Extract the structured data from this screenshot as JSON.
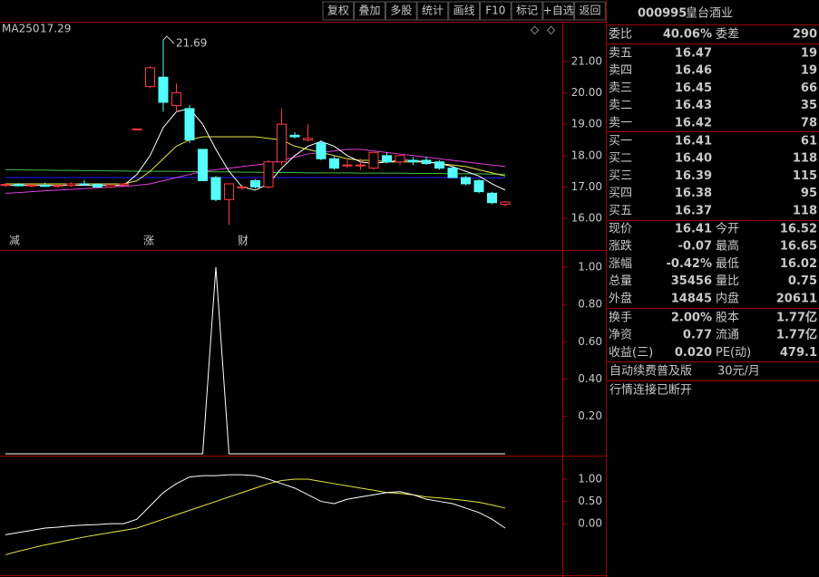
{
  "toolbar": [
    "复权",
    "叠加",
    "多股",
    "统计",
    "画线",
    "F10",
    "标记",
    "+自选",
    "返回"
  ],
  "main_chart": {
    "ma_label": "MA250",
    "ma_value": "17.29",
    "peak_label": "21.69",
    "markers": [
      "减",
      "涨",
      "财"
    ],
    "ylim": [
      15.51,
      22.24
    ],
    "yticks": [
      {
        "value": 21,
        "label": "21.00"
      },
      {
        "value": 20,
        "label": "20.00"
      },
      {
        "value": 19,
        "label": "19.00"
      },
      {
        "value": 18,
        "label": "18.00"
      },
      {
        "value": 17,
        "label": "17.00"
      },
      {
        "value": 16,
        "label": "16.00"
      }
    ],
    "up_color": "#ff3b3b",
    "down_color": "#54ffff",
    "candles": {
      "open": [
        17.05,
        17.08,
        17.04,
        17.06,
        17.02,
        17.05,
        17.1,
        17.08,
        17.0,
        17.06,
        18.85,
        20.2,
        20.5,
        19.6,
        19.5,
        18.2,
        17.3,
        16.6,
        17.0,
        17.2,
        17.0,
        17.8,
        18.65,
        18.5,
        18.4,
        17.9,
        17.7,
        17.7,
        17.6,
        18.0,
        17.8,
        17.85,
        17.85,
        17.8,
        17.6,
        17.3,
        17.2,
        16.8,
        16.45
      ],
      "high": [
        17.12,
        17.12,
        17.1,
        17.14,
        17.08,
        17.15,
        17.22,
        17.12,
        17.1,
        17.12,
        18.85,
        20.85,
        21.69,
        20.3,
        19.6,
        18.2,
        17.35,
        17.1,
        17.05,
        17.25,
        17.85,
        19.5,
        18.75,
        19.0,
        18.5,
        18.0,
        17.9,
        17.9,
        18.1,
        18.1,
        18.0,
        17.95,
        17.95,
        17.85,
        17.65,
        17.35,
        17.25,
        16.85,
        16.55
      ],
      "low": [
        17.0,
        17.02,
        16.98,
        17.0,
        16.96,
        17.0,
        17.05,
        16.98,
        16.96,
        17.0,
        18.85,
        20.15,
        19.4,
        19.4,
        18.4,
        17.2,
        16.55,
        15.8,
        16.9,
        16.95,
        16.95,
        17.7,
        18.55,
        18.45,
        17.85,
        17.55,
        17.6,
        17.55,
        17.55,
        17.75,
        17.7,
        17.7,
        17.7,
        17.55,
        17.3,
        17.05,
        16.8,
        16.45,
        16.38
      ],
      "close": [
        17.08,
        17.04,
        17.06,
        17.02,
        17.05,
        17.1,
        17.08,
        17.0,
        17.06,
        17.1,
        18.85,
        20.8,
        19.7,
        20.0,
        18.5,
        17.2,
        16.6,
        17.1,
        17.0,
        17.0,
        17.8,
        19.0,
        18.6,
        18.55,
        17.9,
        17.6,
        17.7,
        17.7,
        18.1,
        17.8,
        18.0,
        17.8,
        17.75,
        17.6,
        17.3,
        17.1,
        16.85,
        16.5,
        16.52
      ]
    },
    "ma_series": [
      {
        "color": "#2020ff",
        "values": [
          17.3,
          17.3,
          17.3,
          17.3,
          17.3,
          17.3,
          17.3,
          17.3,
          17.3,
          17.3,
          17.3,
          17.3,
          17.3,
          17.3,
          17.3,
          17.3,
          17.3,
          17.3,
          17.3,
          17.3,
          17.3,
          17.3,
          17.3,
          17.3,
          17.3,
          17.3,
          17.3,
          17.3,
          17.3,
          17.3,
          17.3,
          17.3,
          17.3,
          17.3,
          17.29,
          17.29,
          17.29,
          17.29,
          17.29
        ]
      },
      {
        "color": "#40c040",
        "values": [
          17.55,
          17.55,
          17.54,
          17.54,
          17.53,
          17.53,
          17.52,
          17.52,
          17.51,
          17.51,
          17.5,
          17.5,
          17.5,
          17.5,
          17.49,
          17.49,
          17.48,
          17.48,
          17.47,
          17.47,
          17.46,
          17.46,
          17.46,
          17.45,
          17.45,
          17.45,
          17.45,
          17.44,
          17.44,
          17.44,
          17.44,
          17.43,
          17.43,
          17.43,
          17.42,
          17.42,
          17.42,
          17.41,
          17.41
        ]
      },
      {
        "color": "#e040e0",
        "values": [
          16.8,
          16.82,
          16.85,
          16.88,
          16.9,
          16.92,
          16.95,
          16.97,
          17.0,
          17.02,
          17.05,
          17.1,
          17.2,
          17.3,
          17.4,
          17.5,
          17.55,
          17.6,
          17.65,
          17.7,
          17.75,
          17.85,
          17.95,
          18.05,
          18.1,
          18.15,
          18.2,
          18.2,
          18.15,
          18.1,
          18.05,
          18.0,
          17.95,
          17.9,
          17.85,
          17.8,
          17.75,
          17.7,
          17.65
        ]
      },
      {
        "color": "#e8e840",
        "values": [
          17.1,
          17.1,
          17.1,
          17.1,
          17.1,
          17.1,
          17.1,
          17.1,
          17.1,
          17.1,
          17.2,
          17.5,
          17.9,
          18.3,
          18.5,
          18.6,
          18.6,
          18.6,
          18.6,
          18.6,
          18.55,
          18.5,
          18.3,
          18.2,
          18.1,
          18.0,
          17.9,
          17.85,
          17.85,
          17.8,
          17.8,
          17.8,
          17.8,
          17.75,
          17.7,
          17.65,
          17.55,
          17.45,
          17.35
        ]
      },
      {
        "color": "#ffffff",
        "values": [
          17.05,
          17.05,
          17.05,
          17.05,
          17.05,
          17.05,
          17.05,
          17.05,
          17.05,
          17.05,
          17.4,
          18.0,
          18.9,
          19.4,
          19.5,
          19.0,
          18.2,
          17.5,
          17.0,
          16.9,
          17.1,
          17.6,
          18.0,
          18.3,
          18.45,
          18.3,
          18.0,
          17.8,
          17.75,
          17.8,
          17.85,
          17.85,
          17.8,
          17.75,
          17.65,
          17.5,
          17.35,
          17.1,
          16.9
        ]
      }
    ]
  },
  "indicator_1": {
    "ylim": [
      -0.01,
      1.058
    ],
    "yticks": [
      {
        "value": 1,
        "label": "1.00"
      },
      {
        "value": 0.8,
        "label": "0.80"
      },
      {
        "value": 0.6,
        "label": "0.60"
      },
      {
        "value": 0.4,
        "label": "0.40"
      },
      {
        "value": 0.2,
        "label": "0.20"
      }
    ],
    "series": [
      {
        "color": "#ffffff",
        "values": [
          0,
          0,
          0,
          0,
          0,
          0,
          0,
          0,
          0,
          0,
          0,
          0,
          0,
          0,
          0,
          0,
          1,
          0,
          0,
          0,
          0,
          0,
          0,
          0,
          0,
          0,
          0,
          0,
          0,
          0,
          0,
          0,
          0,
          0,
          0,
          0,
          0,
          0,
          0
        ]
      }
    ]
  },
  "indicator_2": {
    "ylim": [
      -1.16,
      1.49
    ],
    "yticks": [
      {
        "value": 1,
        "label": "1.00"
      },
      {
        "value": 0.5,
        "label": "0.50"
      },
      {
        "value": 0,
        "label": "0.00"
      }
    ],
    "series": [
      {
        "color": "#e8e840",
        "values": [
          -0.7,
          -0.62,
          -0.55,
          -0.48,
          -0.42,
          -0.36,
          -0.3,
          -0.25,
          -0.2,
          -0.15,
          -0.1,
          0.0,
          0.1,
          0.2,
          0.3,
          0.4,
          0.5,
          0.6,
          0.7,
          0.8,
          0.9,
          0.97,
          1.0,
          1.0,
          0.95,
          0.9,
          0.85,
          0.8,
          0.75,
          0.7,
          0.68,
          0.65,
          0.6,
          0.58,
          0.55,
          0.52,
          0.48,
          0.42,
          0.35
        ]
      },
      {
        "color": "#ffffff",
        "values": [
          -0.25,
          -0.2,
          -0.15,
          -0.1,
          -0.08,
          -0.05,
          -0.03,
          -0.02,
          0.0,
          0.0,
          0.1,
          0.4,
          0.7,
          0.9,
          1.05,
          1.08,
          1.08,
          1.1,
          1.1,
          1.08,
          1.0,
          0.9,
          0.8,
          0.65,
          0.5,
          0.45,
          0.55,
          0.6,
          0.65,
          0.7,
          0.72,
          0.65,
          0.55,
          0.5,
          0.45,
          0.35,
          0.25,
          0.1,
          -0.1
        ]
      }
    ]
  },
  "quote": {
    "code": "000995",
    "name": "皇台酒业",
    "ratio_row": {
      "label": "委比",
      "value": "40.06%",
      "color": "#ff4040",
      "label2": "委差",
      "value2": "290",
      "color2": "#ff4040"
    },
    "sell": [
      {
        "label": "卖五",
        "price": "16.47",
        "volume": "19"
      },
      {
        "label": "卖四",
        "price": "16.46",
        "volume": "19"
      },
      {
        "label": "卖三",
        "price": "16.45",
        "volume": "66"
      },
      {
        "label": "卖二",
        "price": "16.43",
        "volume": "35"
      },
      {
        "label": "卖一",
        "price": "16.42",
        "volume": "78"
      }
    ],
    "buy": [
      {
        "label": "买一",
        "price": "16.41",
        "volume": "61"
      },
      {
        "label": "买二",
        "price": "16.40",
        "volume": "118"
      },
      {
        "label": "买三",
        "price": "16.39",
        "volume": "115"
      },
      {
        "label": "买四",
        "price": "16.38",
        "volume": "95"
      },
      {
        "label": "买五",
        "price": "16.37",
        "volume": "118"
      }
    ],
    "price_color": "#40ff40",
    "volume_color": "#ffff40",
    "stats": [
      {
        "label": "现价",
        "value": "16.41",
        "color": "#40ff40",
        "label2": "今开",
        "value2": "16.52",
        "color2": "#ff4040"
      },
      {
        "label": "涨跌",
        "value": "-0.07",
        "color": "#40ff40",
        "label2": "最高",
        "value2": "16.65",
        "color2": "#ff4040"
      },
      {
        "label": "涨幅",
        "value": "-0.42%",
        "color": "#40ff40",
        "label2": "最低",
        "value2": "16.02",
        "color2": "#40ff40"
      },
      {
        "label": "总量",
        "value": "35456",
        "color": "#ffff40",
        "label2": "量比",
        "value2": "0.75",
        "color2": "#ffff40"
      },
      {
        "label": "外盘",
        "value": "14845",
        "color": "#ff4040",
        "label2": "内盘",
        "value2": "20611",
        "color2": "#40ff40"
      }
    ],
    "fundamentals": [
      {
        "label": "换手",
        "value": "2.00%",
        "color": "#e0e0e0",
        "label2": "股本",
        "value2": "1.77亿",
        "color2": "#e0e0e0"
      },
      {
        "label": "净资",
        "value": "0.77",
        "color": "#e0e0e0",
        "label2": "流通",
        "value2": "1.77亿",
        "color2": "#e0e0e0"
      },
      {
        "label": "收益(三)",
        "value": "0.020",
        "color": "#e0e0e0",
        "label2": "PE(动)",
        "value2": "479.1",
        "color2": "#e0e0e0"
      }
    ],
    "promo": "自动续费普及版",
    "promo_price": "30元/月",
    "status": "行情连接已断开"
  }
}
